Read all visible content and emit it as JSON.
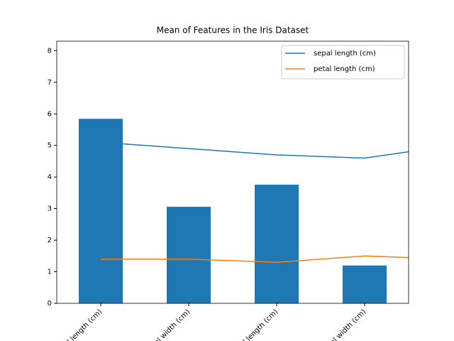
{
  "chart_data": {
    "type": "bar",
    "title": "Mean of Features in the Iris Dataset",
    "categories": [
      "sepal length (cm)",
      "sepal width (cm)",
      "petal length (cm)",
      "petal width (cm)"
    ],
    "values": [
      5.843,
      3.057,
      3.758,
      1.199
    ],
    "color": "#1f77b4",
    "xlim": [
      -0.5,
      3.5
    ],
    "ylim": [
      0,
      8.3
    ],
    "yticks": [
      0,
      1,
      2,
      3,
      4,
      5,
      6,
      7,
      8
    ],
    "legend": "upper right",
    "series": [
      {
        "name": "sepal length (cm)",
        "color": "#1f77b4",
        "x": [
          0,
          1,
          2,
          3,
          4
        ],
        "values": [
          5.1,
          4.9,
          4.7,
          4.6,
          5.0
        ]
      },
      {
        "name": "petal length (cm)",
        "color": "#ff7f0e",
        "x": [
          0,
          1,
          2,
          3,
          4
        ],
        "values": [
          1.4,
          1.4,
          1.3,
          1.5,
          1.4
        ]
      }
    ]
  }
}
